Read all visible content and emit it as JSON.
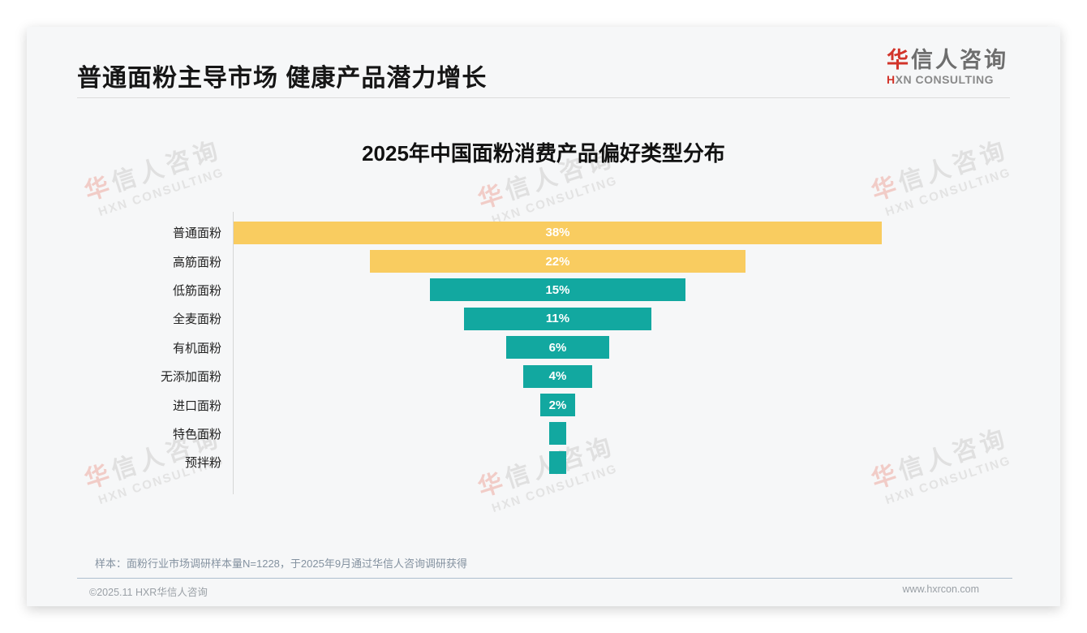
{
  "header": {
    "title": "普通面粉主导市场 健康产品潜力增长",
    "logo_cn_accent": "华",
    "logo_cn_rest": "信人咨询",
    "logo_en_accent": "H",
    "logo_en_rest": "XN CONSULTING"
  },
  "chart_data": {
    "type": "bar",
    "subtype": "centered-funnel-horizontal",
    "title": "2025年中国面粉消费产品偏好类型分布",
    "categories": [
      "普通面粉",
      "高筋面粉",
      "低筋面粉",
      "全麦面粉",
      "有机面粉",
      "无添加面粉",
      "进口面粉",
      "特色面粉",
      "预拌粉"
    ],
    "values": [
      38,
      22,
      15,
      11,
      6,
      4,
      2,
      1,
      1
    ],
    "unit": "%",
    "value_labels": [
      "38%",
      "22%",
      "15%",
      "11%",
      "6%",
      "4%",
      "2%",
      "",
      ""
    ],
    "bar_colors": [
      "#f9cc60",
      "#f9cc60",
      "#12a8a0",
      "#12a8a0",
      "#12a8a0",
      "#12a8a0",
      "#12a8a0",
      "#12a8a0",
      "#12a8a0"
    ],
    "xlim": [
      0,
      38
    ],
    "legend": false,
    "grid": false
  },
  "footnote": "样本：面粉行业市场调研样本量N=1228，于2025年9月通过华信人咨询调研获得",
  "footer": {
    "copyright": "©2025.11 HXR华信人咨询",
    "website": "www.hxrcon.com"
  },
  "watermark": {
    "cn_accent": "华",
    "cn_rest": "信人咨询",
    "en": "HXN CONSULTING"
  },
  "colors": {
    "accent_red": "#d2342a",
    "bar_yellow": "#f9cc60",
    "bar_teal": "#12a8a0",
    "title_black": "#161616",
    "value_label_white": "#ffffff"
  }
}
